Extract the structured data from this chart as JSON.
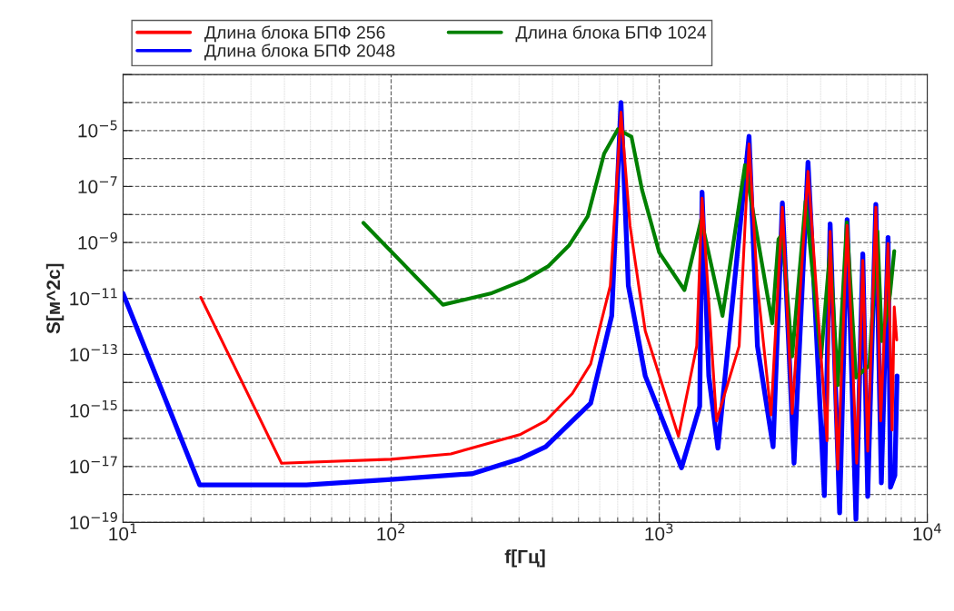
{
  "chart_data": {
    "type": "line",
    "xlabel": "f[Гц]",
    "ylabel": "S[м^2с]",
    "log": "xy",
    "grid": true,
    "legend": "top",
    "marker": "none",
    "line_style": "solid",
    "xlim": [
      10,
      10000
    ],
    "xticks": [
      {
        "value": 10,
        "label": "10$^{1}$"
      },
      {
        "value": 100,
        "label": "10$^{2}$"
      },
      {
        "value": 1000,
        "label": "10$^{3}$"
      },
      {
        "value": 10000,
        "label": "10$^{4}$"
      }
    ],
    "ylim": [
      1e-19,
      0.001
    ],
    "yticks": [
      {
        "value": 1e-19,
        "label": "10$^{−19}$"
      },
      {
        "value": 1e-18,
        "label": null
      },
      {
        "value": 1e-17,
        "label": "10$^{−17}$"
      },
      {
        "value": 1e-16,
        "label": null
      },
      {
        "value": 1e-15,
        "label": "10$^{−15}$"
      },
      {
        "value": 1e-14,
        "label": null
      },
      {
        "value": 1e-13,
        "label": "10$^{−13}$"
      },
      {
        "value": 1e-12,
        "label": null
      },
      {
        "value": 1e-11,
        "label": "10$^{−11}$"
      },
      {
        "value": 1e-10,
        "label": null
      },
      {
        "value": 1e-09,
        "label": "10$^{−9}$"
      },
      {
        "value": 1e-08,
        "label": null
      },
      {
        "value": 1e-07,
        "label": "10$^{−7}$"
      },
      {
        "value": 1e-06,
        "label": null
      },
      {
        "value": 1e-05,
        "label": "10$^{−5}$"
      },
      {
        "value": 0.0001,
        "label": null
      },
      {
        "value": 0.001,
        "label": null
      }
    ],
    "series": [
      {
        "name": "Длина блока БПФ 256",
        "color": "#ff0000",
        "x": [
          19.5,
          39,
          100,
          167,
          304,
          377,
          474,
          555,
          657,
          720,
          778,
          887,
          1180,
          1380,
          1445,
          1636,
          1987,
          2163,
          2325,
          2612,
          2880,
          3133,
          3590,
          4227,
          4341,
          4636,
          5024,
          5454,
          5747,
          5995,
          6428,
          6700,
          7140,
          7390,
          7530,
          7690
        ],
        "values": [
          1.1e-11,
          1.3e-17,
          1.8e-17,
          2.8e-17,
          1.4e-16,
          4.2e-16,
          4e-15,
          4.6e-14,
          2.9e-11,
          4.5e-05,
          4.1e-09,
          6.9e-13,
          1.2e-16,
          2e-13,
          3.8e-08,
          4.2e-16,
          2e-13,
          3.3e-06,
          2.9e-11,
          6.9e-16,
          1.8e-08,
          7.8e-16,
          3.5e-07,
          8.3e-17,
          2.5e-09,
          7.9e-18,
          4.1e-09,
          1.3e-17,
          2.3e-10,
          3.5e-17,
          1.8e-08,
          4.2e-16,
          9.1e-10,
          2e-16,
          5e-12,
          3.3e-13
        ]
      },
      {
        "name": "Длина блока БПФ 1024",
        "color": "#008000",
        "x": [
          78.8,
          156,
          235,
          313,
          385,
          462,
          541,
          623,
          701,
          788,
          862,
          1000,
          1242,
          1435,
          1722,
          2090,
          2640,
          2786,
          2880,
          3133,
          3517,
          4014,
          4341,
          4636,
          5010,
          5418,
          6080,
          6515,
          6770,
          7080,
          7260,
          7530
        ],
        "values": [
          5e-09,
          6e-12,
          1.5e-11,
          4.5e-11,
          1.4e-10,
          8.1e-10,
          8.5e-09,
          1.5e-06,
          1.1e-05,
          6e-06,
          7.9e-08,
          4.4e-10,
          2e-11,
          6.6e-09,
          2.4e-12,
          5.8e-07,
          1.3e-12,
          1.3e-09,
          2e-09,
          8.5e-14,
          3e-08,
          7.6e-14,
          5.6e-10,
          8.1e-15,
          5.2e-09,
          1.5e-14,
          4.1e-14,
          2.5e-09,
          3e-13,
          3.1e-12,
          1.4e-11,
          4.9e-10
        ]
      },
      {
        "name": "Длина блока БПФ 2048",
        "color": "#0000ff",
        "x": [
          10,
          19.3,
          48.3,
          100,
          201,
          304,
          377,
          474,
          555,
          665,
          720,
          767,
          887,
          1211,
          1416,
          1445,
          1531,
          1656,
          2163,
          2325,
          2660,
          2880,
          3184,
          3590,
          4131,
          4341,
          4710,
          5024,
          5418,
          5747,
          5995,
          6428,
          6740,
          7140,
          7290,
          7570,
          7710
        ],
        "values": [
          1.5e-11,
          2.2e-18,
          2.2e-18,
          3.4e-18,
          5.5e-18,
          1.9e-17,
          5e-17,
          4.2e-16,
          1.8e-15,
          2.4e-12,
          0.0001,
          2.9e-11,
          1.7e-14,
          8.9e-18,
          1.4e-15,
          6.3e-08,
          1.7e-14,
          4.5e-17,
          6.2e-06,
          2e-13,
          5e-17,
          2.6e-08,
          1.3e-17,
          7.4e-07,
          9.1e-19,
          4.6e-09,
          2.2e-19,
          6.6e-09,
          1.3e-19,
          3.9e-10,
          8.5e-19,
          2.3e-08,
          2.6e-18,
          1.5e-09,
          1.8e-18,
          4.8e-18,
          1.7e-14
        ]
      }
    ]
  }
}
